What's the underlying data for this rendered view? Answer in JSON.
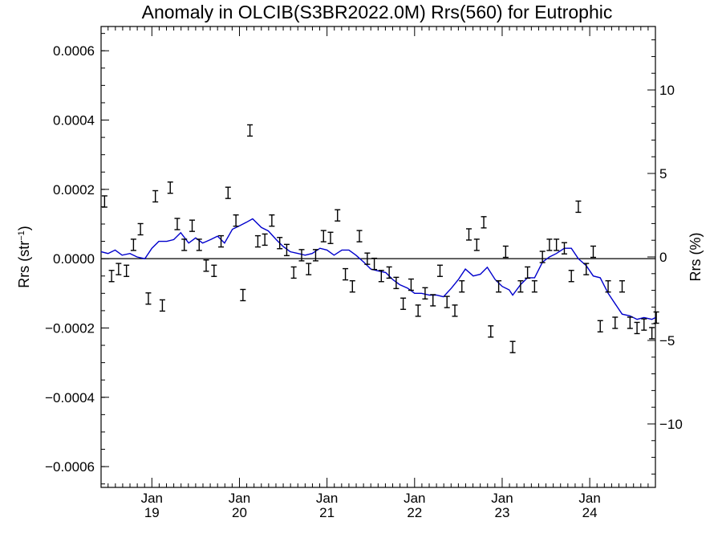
{
  "chart_data": {
    "type": "scatter",
    "title": "Anomaly in OLCIB(S3BR2022.0M) Rrs(560) for Eutrophic",
    "ylabel_left": {
      "base": "Rrs (str",
      "sup": "−1",
      "close": ")"
    },
    "ylabel_right": "Rrs (%)",
    "xlim": [
      2018.42,
      2024.75
    ],
    "ylim_left": [
      -0.00066,
      0.00067
    ],
    "ylim_right": [
      -13.8,
      13.8
    ],
    "x_ticks": [
      {
        "x": 2019.0,
        "month": "Jan",
        "year": "19"
      },
      {
        "x": 2020.0,
        "month": "Jan",
        "year": "20"
      },
      {
        "x": 2021.0,
        "month": "Jan",
        "year": "21"
      },
      {
        "x": 2022.0,
        "month": "Jan",
        "year": "22"
      },
      {
        "x": 2023.0,
        "month": "Jan",
        "year": "23"
      },
      {
        "x": 2024.0,
        "month": "Jan",
        "year": "24"
      }
    ],
    "y_ticks_left": [
      {
        "v": 0.0006,
        "label": "0.0006"
      },
      {
        "v": 0.0004,
        "label": "0.0004"
      },
      {
        "v": 0.0002,
        "label": "0.0002"
      },
      {
        "v": 0.0,
        "label": "0.0000"
      },
      {
        "v": -0.0002,
        "label": "−0.0002"
      },
      {
        "v": -0.0004,
        "label": "−0.0004"
      },
      {
        "v": -0.0006,
        "label": "−0.0006"
      }
    ],
    "y_ticks_right": [
      {
        "v": 10,
        "label": "10"
      },
      {
        "v": 5,
        "label": "5"
      },
      {
        "v": 0,
        "label": "0"
      },
      {
        "v": -5,
        "label": "−5"
      },
      {
        "v": -10,
        "label": "−10"
      }
    ],
    "zero_line": 0,
    "points": [
      {
        "x": 2018.46,
        "y": 0.000165
      },
      {
        "x": 2018.54,
        "y": -5e-05
      },
      {
        "x": 2018.62,
        "y": -3e-05
      },
      {
        "x": 2018.71,
        "y": -3.5e-05
      },
      {
        "x": 2018.79,
        "y": 4e-05
      },
      {
        "x": 2018.87,
        "y": 8.5e-05
      },
      {
        "x": 2018.96,
        "y": -0.000115
      },
      {
        "x": 2019.04,
        "y": 0.00018
      },
      {
        "x": 2019.12,
        "y": -0.000135
      },
      {
        "x": 2019.21,
        "y": 0.000205
      },
      {
        "x": 2019.29,
        "y": 0.0001
      },
      {
        "x": 2019.37,
        "y": 4e-05
      },
      {
        "x": 2019.46,
        "y": 9.5e-05
      },
      {
        "x": 2019.54,
        "y": 4e-05
      },
      {
        "x": 2019.62,
        "y": -2e-05
      },
      {
        "x": 2019.71,
        "y": -3.5e-05
      },
      {
        "x": 2019.79,
        "y": 5e-05
      },
      {
        "x": 2019.87,
        "y": 0.00019
      },
      {
        "x": 2019.96,
        "y": 0.00011
      },
      {
        "x": 2020.04,
        "y": -0.000105
      },
      {
        "x": 2020.12,
        "y": 0.00037
      },
      {
        "x": 2020.21,
        "y": 5e-05
      },
      {
        "x": 2020.29,
        "y": 5.5e-05
      },
      {
        "x": 2020.37,
        "y": 0.00011
      },
      {
        "x": 2020.46,
        "y": 4.5e-05
      },
      {
        "x": 2020.54,
        "y": 2.5e-05
      },
      {
        "x": 2020.62,
        "y": -4e-05
      },
      {
        "x": 2020.71,
        "y": 1e-05
      },
      {
        "x": 2020.79,
        "y": -3e-05
      },
      {
        "x": 2020.87,
        "y": 1e-05
      },
      {
        "x": 2020.96,
        "y": 6.5e-05
      },
      {
        "x": 2021.04,
        "y": 6e-05
      },
      {
        "x": 2021.12,
        "y": 0.000125
      },
      {
        "x": 2021.21,
        "y": -4.5e-05
      },
      {
        "x": 2021.29,
        "y": -8e-05
      },
      {
        "x": 2021.37,
        "y": 6.5e-05
      },
      {
        "x": 2021.46,
        "y": 0.0
      },
      {
        "x": 2021.54,
        "y": -1.5e-05
      },
      {
        "x": 2021.62,
        "y": -5e-05
      },
      {
        "x": 2021.71,
        "y": -4e-05
      },
      {
        "x": 2021.79,
        "y": -7e-05
      },
      {
        "x": 2021.87,
        "y": -0.00013
      },
      {
        "x": 2021.96,
        "y": -7.5e-05
      },
      {
        "x": 2022.04,
        "y": -0.00015
      },
      {
        "x": 2022.12,
        "y": -0.0001
      },
      {
        "x": 2022.21,
        "y": -0.00012
      },
      {
        "x": 2022.29,
        "y": -3.5e-05
      },
      {
        "x": 2022.37,
        "y": -0.000125
      },
      {
        "x": 2022.46,
        "y": -0.00015
      },
      {
        "x": 2022.54,
        "y": -8e-05
      },
      {
        "x": 2022.62,
        "y": 7e-05
      },
      {
        "x": 2022.71,
        "y": 4e-05
      },
      {
        "x": 2022.79,
        "y": 0.000105
      },
      {
        "x": 2022.87,
        "y": -0.00021
      },
      {
        "x": 2022.96,
        "y": -8e-05
      },
      {
        "x": 2023.04,
        "y": 2e-05
      },
      {
        "x": 2023.12,
        "y": -0.000255
      },
      {
        "x": 2023.21,
        "y": -8e-05
      },
      {
        "x": 2023.29,
        "y": -4e-05
      },
      {
        "x": 2023.37,
        "y": -8e-05
      },
      {
        "x": 2023.46,
        "y": 5e-06
      },
      {
        "x": 2023.54,
        "y": 4e-05
      },
      {
        "x": 2023.62,
        "y": 4e-05
      },
      {
        "x": 2023.71,
        "y": 3e-05
      },
      {
        "x": 2023.79,
        "y": -5e-05
      },
      {
        "x": 2023.87,
        "y": 0.00015
      },
      {
        "x": 2023.96,
        "y": -3e-05
      },
      {
        "x": 2024.04,
        "y": 2e-05
      },
      {
        "x": 2024.12,
        "y": -0.000195
      },
      {
        "x": 2024.21,
        "y": -8e-05
      },
      {
        "x": 2024.29,
        "y": -0.000185
      },
      {
        "x": 2024.37,
        "y": -8e-05
      },
      {
        "x": 2024.46,
        "y": -0.000185
      },
      {
        "x": 2024.54,
        "y": -0.0002
      },
      {
        "x": 2024.62,
        "y": -0.00019
      },
      {
        "x": 2024.71,
        "y": -0.000215
      },
      {
        "x": 2024.76,
        "y": -0.00017
      }
    ],
    "running_mean": {
      "color": "#0000cc",
      "points": [
        {
          "x": 2018.42,
          "y": 2e-05
        },
        {
          "x": 2018.5,
          "y": 1.5e-05
        },
        {
          "x": 2018.58,
          "y": 2.5e-05
        },
        {
          "x": 2018.66,
          "y": 1e-05
        },
        {
          "x": 2018.75,
          "y": 1.5e-05
        },
        {
          "x": 2018.83,
          "y": 5e-06
        },
        {
          "x": 2018.92,
          "y": 0.0
        },
        {
          "x": 2019.0,
          "y": 3e-05
        },
        {
          "x": 2019.08,
          "y": 5e-05
        },
        {
          "x": 2019.17,
          "y": 5e-05
        },
        {
          "x": 2019.25,
          "y": 5.5e-05
        },
        {
          "x": 2019.33,
          "y": 7.5e-05
        },
        {
          "x": 2019.42,
          "y": 4.5e-05
        },
        {
          "x": 2019.5,
          "y": 6e-05
        },
        {
          "x": 2019.58,
          "y": 4.5e-05
        },
        {
          "x": 2019.67,
          "y": 5.5e-05
        },
        {
          "x": 2019.75,
          "y": 6.5e-05
        },
        {
          "x": 2019.83,
          "y": 4.5e-05
        },
        {
          "x": 2019.92,
          "y": 8.5e-05
        },
        {
          "x": 2020.0,
          "y": 9.5e-05
        },
        {
          "x": 2020.08,
          "y": 0.000105
        },
        {
          "x": 2020.15,
          "y": 0.000115
        },
        {
          "x": 2020.25,
          "y": 9e-05
        },
        {
          "x": 2020.33,
          "y": 8e-05
        },
        {
          "x": 2020.42,
          "y": 5.5e-05
        },
        {
          "x": 2020.5,
          "y": 3.5e-05
        },
        {
          "x": 2020.58,
          "y": 2e-05
        },
        {
          "x": 2020.67,
          "y": 1.5e-05
        },
        {
          "x": 2020.75,
          "y": 1e-05
        },
        {
          "x": 2020.83,
          "y": 1.5e-05
        },
        {
          "x": 2020.92,
          "y": 3e-05
        },
        {
          "x": 2021.0,
          "y": 2.5e-05
        },
        {
          "x": 2021.08,
          "y": 1e-05
        },
        {
          "x": 2021.17,
          "y": 2.5e-05
        },
        {
          "x": 2021.25,
          "y": 2.5e-05
        },
        {
          "x": 2021.33,
          "y": 1e-05
        },
        {
          "x": 2021.42,
          "y": -1e-05
        },
        {
          "x": 2021.5,
          "y": -3e-05
        },
        {
          "x": 2021.58,
          "y": -3.5e-05
        },
        {
          "x": 2021.67,
          "y": -4e-05
        },
        {
          "x": 2021.75,
          "y": -6e-05
        },
        {
          "x": 2021.83,
          "y": -7.5e-05
        },
        {
          "x": 2021.92,
          "y": -8.5e-05
        },
        {
          "x": 2022.0,
          "y": -0.0001
        },
        {
          "x": 2022.08,
          "y": -0.0001
        },
        {
          "x": 2022.17,
          "y": -0.000105
        },
        {
          "x": 2022.25,
          "y": -0.000105
        },
        {
          "x": 2022.33,
          "y": -0.00011
        },
        {
          "x": 2022.42,
          "y": -8.5e-05
        },
        {
          "x": 2022.5,
          "y": -6e-05
        },
        {
          "x": 2022.58,
          "y": -3e-05
        },
        {
          "x": 2022.67,
          "y": -5e-05
        },
        {
          "x": 2022.75,
          "y": -4.5e-05
        },
        {
          "x": 2022.83,
          "y": -2.5e-05
        },
        {
          "x": 2022.92,
          "y": -6e-05
        },
        {
          "x": 2023.0,
          "y": -8e-05
        },
        {
          "x": 2023.08,
          "y": -9e-05
        },
        {
          "x": 2023.12,
          "y": -0.000105
        },
        {
          "x": 2023.21,
          "y": -7.5e-05
        },
        {
          "x": 2023.29,
          "y": -5.5e-05
        },
        {
          "x": 2023.37,
          "y": -5.5e-05
        },
        {
          "x": 2023.46,
          "y": -1e-05
        },
        {
          "x": 2023.54,
          "y": 5e-06
        },
        {
          "x": 2023.62,
          "y": 1.5e-05
        },
        {
          "x": 2023.71,
          "y": 3e-05
        },
        {
          "x": 2023.79,
          "y": 3e-05
        },
        {
          "x": 2023.87,
          "y": 0.0
        },
        {
          "x": 2023.96,
          "y": -2e-05
        },
        {
          "x": 2024.04,
          "y": -5e-05
        },
        {
          "x": 2024.12,
          "y": -5.5e-05
        },
        {
          "x": 2024.21,
          "y": -0.0001
        },
        {
          "x": 2024.29,
          "y": -0.00013
        },
        {
          "x": 2024.37,
          "y": -0.00016
        },
        {
          "x": 2024.46,
          "y": -0.000165
        },
        {
          "x": 2024.54,
          "y": -0.000175
        },
        {
          "x": 2024.62,
          "y": -0.00017
        },
        {
          "x": 2024.71,
          "y": -0.000175
        },
        {
          "x": 2024.75,
          "y": -0.00017
        }
      ]
    },
    "grid": false,
    "legend": "none"
  }
}
